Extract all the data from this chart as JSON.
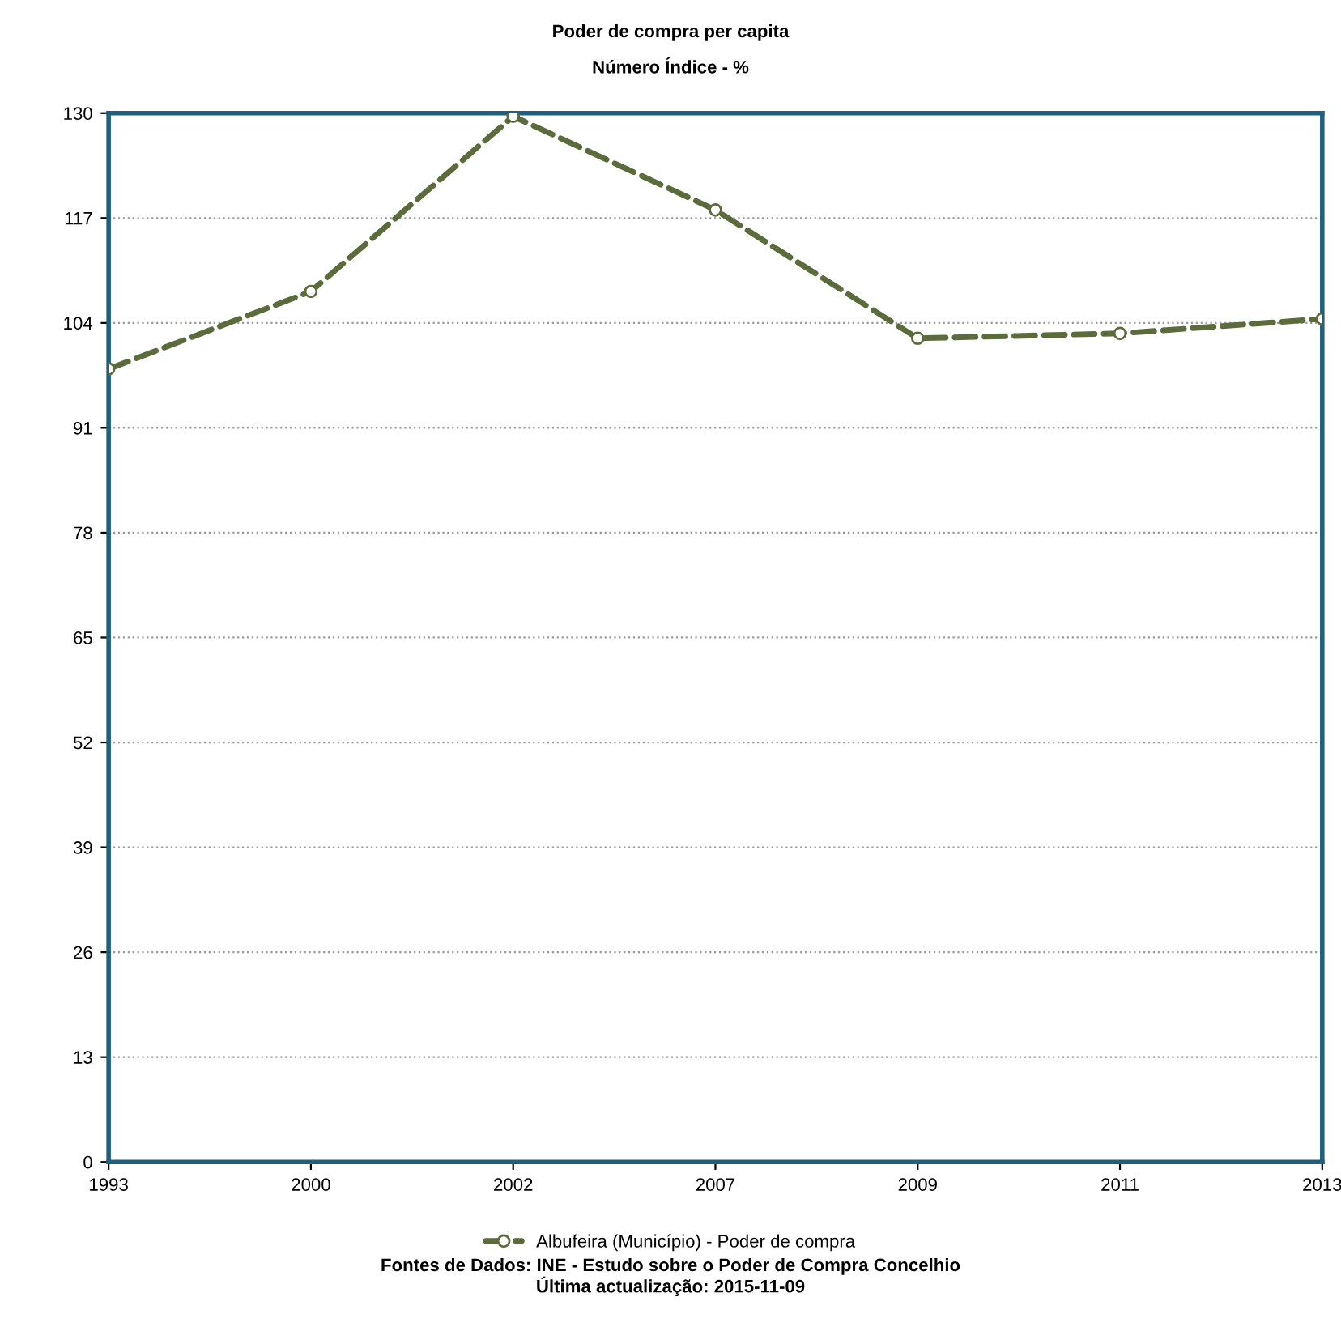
{
  "chart_data": {
    "type": "line",
    "title": "Poder de compra per capita",
    "subtitle": "Número Índice - %",
    "categories": [
      "1993",
      "2000",
      "2002",
      "2007",
      "2009",
      "2011",
      "2013"
    ],
    "series": [
      {
        "name": "Albufeira (Município) - Poder de compra",
        "color": "#5b6b3c",
        "values": [
          98.3,
          107.9,
          129.6,
          118,
          102.1,
          102.7,
          104.5
        ]
      }
    ],
    "ylim": [
      0,
      130
    ],
    "yticks": [
      0,
      13,
      26,
      39,
      52,
      65,
      78,
      91,
      104,
      117,
      130
    ],
    "grid": "y",
    "legend": "bottom",
    "marker": "circle",
    "line_style": "dashed",
    "annotations": [
      "Fontes de Dados: INE - Estudo sobre o Poder de Compra Concelhio",
      "Última actualização: 2015-11-09"
    ]
  }
}
